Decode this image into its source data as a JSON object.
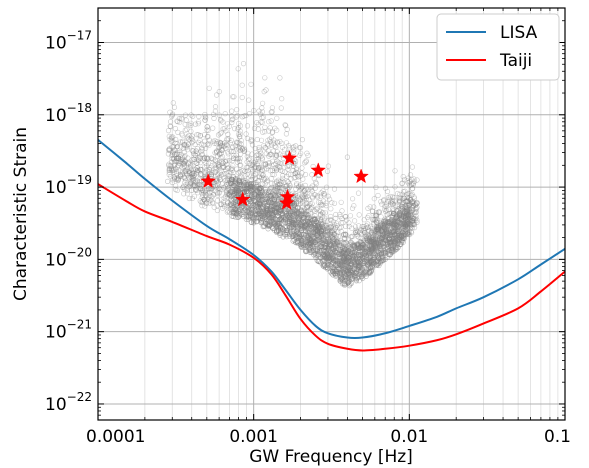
{
  "chart_data": {
    "type": "line",
    "xlabel": "GW Frequency [Hz]",
    "ylabel": "Characteristic Strain",
    "x_scale": "log",
    "y_scale": "log",
    "xlim": [
      0.0001,
      0.1
    ],
    "ylim": [
      6e-23,
      3e-17
    ],
    "grid": true,
    "legend_position": "top-right",
    "x_ticks": [
      {
        "value": 0.0001,
        "label": "0.0001"
      },
      {
        "value": 0.001,
        "label": "0.001"
      },
      {
        "value": 0.01,
        "label": "0.01"
      },
      {
        "value": 0.1,
        "label": "0.1"
      }
    ],
    "y_ticks": [
      {
        "value": 1e-22,
        "base": "10",
        "exp": "−22"
      },
      {
        "value": 1e-21,
        "base": "10",
        "exp": "−21"
      },
      {
        "value": 1e-20,
        "base": "10",
        "exp": "−20"
      },
      {
        "value": 1e-19,
        "base": "10",
        "exp": "−19"
      },
      {
        "value": 1e-18,
        "base": "10",
        "exp": "−18"
      },
      {
        "value": 1e-17,
        "base": "10",
        "exp": "−17"
      }
    ],
    "series": [
      {
        "name": "LISA",
        "color": "#1f77b4",
        "x": [
          0.0001,
          0.00015,
          0.0002,
          0.0003,
          0.0005,
          0.0007,
          0.001,
          0.0013,
          0.0016,
          0.002,
          0.0025,
          0.003,
          0.004,
          0.005,
          0.007,
          0.01,
          0.015,
          0.02,
          0.03,
          0.05,
          0.07,
          0.1
        ],
        "y": [
          4.5e-19,
          2.2e-19,
          1.3e-19,
          6.5e-20,
          2.9e-20,
          1.9e-20,
          1.15e-20,
          6.8e-21,
          3.8e-21,
          2e-21,
          1.2e-21,
          9.5e-22,
          8.3e-22,
          8.3e-22,
          9.5e-22,
          1.2e-21,
          1.6e-21,
          2.1e-21,
          3e-21,
          5.3e-21,
          8.5e-21,
          1.4e-20
        ]
      },
      {
        "name": "Taiji",
        "color": "#ff0000",
        "x": [
          0.0001,
          0.00015,
          0.0002,
          0.0003,
          0.0005,
          0.0007,
          0.001,
          0.0013,
          0.0016,
          0.002,
          0.0025,
          0.003,
          0.004,
          0.005,
          0.007,
          0.01,
          0.015,
          0.02,
          0.03,
          0.05,
          0.07,
          0.1
        ],
        "y": [
          1.1e-19,
          6.5e-20,
          4.6e-20,
          3.3e-20,
          2.1e-20,
          1.6e-20,
          1.05e-20,
          6.2e-21,
          3.2e-21,
          1.5e-21,
          8.8e-22,
          6.8e-22,
          5.8e-22,
          5.5e-22,
          5.8e-22,
          6.4e-22,
          7.6e-22,
          9.2e-22,
          1.3e-21,
          2.1e-21,
          3.6e-21,
          6.8e-21
        ]
      }
    ],
    "scatter_cloud": {
      "color": "#808080",
      "description_points": [
        [
          0.00028,
          1.2e-19
        ],
        [
          0.0004,
          9e-20
        ],
        [
          0.0005,
          6e-20
        ],
        [
          0.0007,
          4.5e-20
        ],
        [
          0.001,
          3.2e-20
        ],
        [
          0.0015,
          2.5e-20
        ],
        [
          0.002,
          1.6e-20
        ],
        [
          0.003,
          1.1e-20
        ],
        [
          0.004,
          1e-20
        ],
        [
          0.006,
          1.4e-20
        ],
        [
          0.008,
          2.2e-20
        ],
        [
          0.01,
          3.5e-20
        ],
        [
          0.0012,
          2.2e-18
        ],
        [
          0.004,
          2.6e-19
        ],
        [
          0.002,
          3.5e-19
        ]
      ]
    },
    "stars": {
      "color": "#ff0000",
      "points": [
        [
          0.00051,
          1.2e-19
        ],
        [
          0.00085,
          6.7e-20
        ],
        [
          0.00163,
          6e-20
        ],
        [
          0.00165,
          7.3e-20
        ],
        [
          0.0017,
          2.5e-19
        ],
        [
          0.0026,
          1.7e-19
        ],
        [
          0.0049,
          1.4e-19
        ]
      ]
    }
  }
}
